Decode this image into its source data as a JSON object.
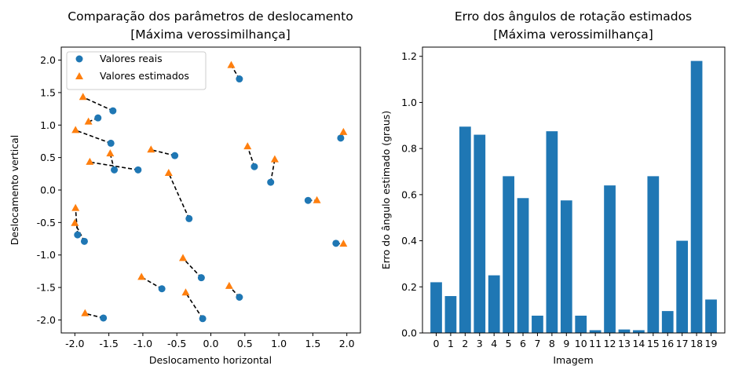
{
  "colors": {
    "blue": "#1f77b4",
    "orange": "#ff7f0e",
    "link": "#000000"
  },
  "chart_data": [
    {
      "type": "scatter",
      "title_lines": [
        "Comparação dos parâmetros de deslocamento",
        "[Máxima verossimilhança]"
      ],
      "xlabel": "Deslocamento horizontal",
      "ylabel": "Deslocamento vertical",
      "xlim": [
        -2.2,
        2.2
      ],
      "ylim": [
        -2.2,
        2.2
      ],
      "xticks": [
        -2.0,
        -1.5,
        -1.0,
        -0.5,
        0.0,
        0.5,
        1.0,
        1.5,
        2.0
      ],
      "yticks": [
        -2.0,
        -1.5,
        -1.0,
        -0.5,
        0.0,
        0.5,
        1.0,
        1.5,
        2.0
      ],
      "legend": {
        "position": "upper-left",
        "entries": [
          "Valores reais",
          "Valores estimados"
        ]
      },
      "pairs": [
        {
          "real": [
            0.42,
            1.71
          ],
          "est": [
            0.3,
            1.92
          ]
        },
        {
          "real": [
            -1.44,
            1.22
          ],
          "est": [
            -1.88,
            1.43
          ]
        },
        {
          "real": [
            -1.66,
            1.11
          ],
          "est": [
            -1.8,
            1.05
          ]
        },
        {
          "real": [
            -1.47,
            0.72
          ],
          "est": [
            -1.99,
            0.92
          ]
        },
        {
          "real": [
            -0.53,
            0.53
          ],
          "est": [
            -0.88,
            0.62
          ]
        },
        {
          "real": [
            -1.42,
            0.31
          ],
          "est": [
            -1.48,
            0.56
          ]
        },
        {
          "real": [
            -1.07,
            0.31
          ],
          "est": [
            -1.78,
            0.43
          ]
        },
        {
          "real": [
            0.64,
            0.36
          ],
          "est": [
            0.54,
            0.67
          ]
        },
        {
          "real": [
            0.88,
            0.12
          ],
          "est": [
            0.94,
            0.47
          ]
        },
        {
          "real": [
            1.91,
            0.8
          ],
          "est": [
            1.95,
            0.89
          ]
        },
        {
          "real": [
            1.43,
            -0.16
          ],
          "est": [
            1.56,
            -0.16
          ]
        },
        {
          "real": [
            -0.32,
            -0.44
          ],
          "est": [
            -0.62,
            0.26
          ]
        },
        {
          "real": [
            -1.96,
            -0.69
          ],
          "est": [
            -1.99,
            -0.28
          ]
        },
        {
          "real": [
            -1.86,
            -0.79
          ],
          "est": [
            -2.0,
            -0.51
          ]
        },
        {
          "real": [
            1.84,
            -0.82
          ],
          "est": [
            1.95,
            -0.83
          ]
        },
        {
          "real": [
            -0.14,
            -1.35
          ],
          "est": [
            -0.41,
            -1.05
          ]
        },
        {
          "real": [
            -0.72,
            -1.52
          ],
          "est": [
            -1.02,
            -1.34
          ]
        },
        {
          "real": [
            0.42,
            -1.65
          ],
          "est": [
            0.27,
            -1.48
          ]
        },
        {
          "real": [
            -0.12,
            -1.98
          ],
          "est": [
            -0.37,
            -1.58
          ]
        },
        {
          "real": [
            -1.58,
            -1.97
          ],
          "est": [
            -1.85,
            -1.9
          ]
        }
      ]
    },
    {
      "type": "bar",
      "title_lines": [
        "Erro dos ângulos de rotação estimados",
        "[Máxima verossimilhança]"
      ],
      "xlabel": "Imagem",
      "ylabel": "Erro do ângulo estimado (graus)",
      "categories": [
        "0",
        "1",
        "2",
        "3",
        "4",
        "5",
        "6",
        "7",
        "8",
        "9",
        "10",
        "11",
        "12",
        "13",
        "14",
        "15",
        "16",
        "17",
        "18",
        "19"
      ],
      "values": [
        0.22,
        0.16,
        0.895,
        0.86,
        0.25,
        0.68,
        0.585,
        0.075,
        0.875,
        0.575,
        0.075,
        0.012,
        0.64,
        0.015,
        0.012,
        0.68,
        0.095,
        0.4,
        1.18,
        0.145
      ],
      "ylim": [
        0,
        1.24
      ],
      "yticks": [
        0.0,
        0.2,
        0.4,
        0.6,
        0.8,
        1.0,
        1.2
      ]
    }
  ]
}
